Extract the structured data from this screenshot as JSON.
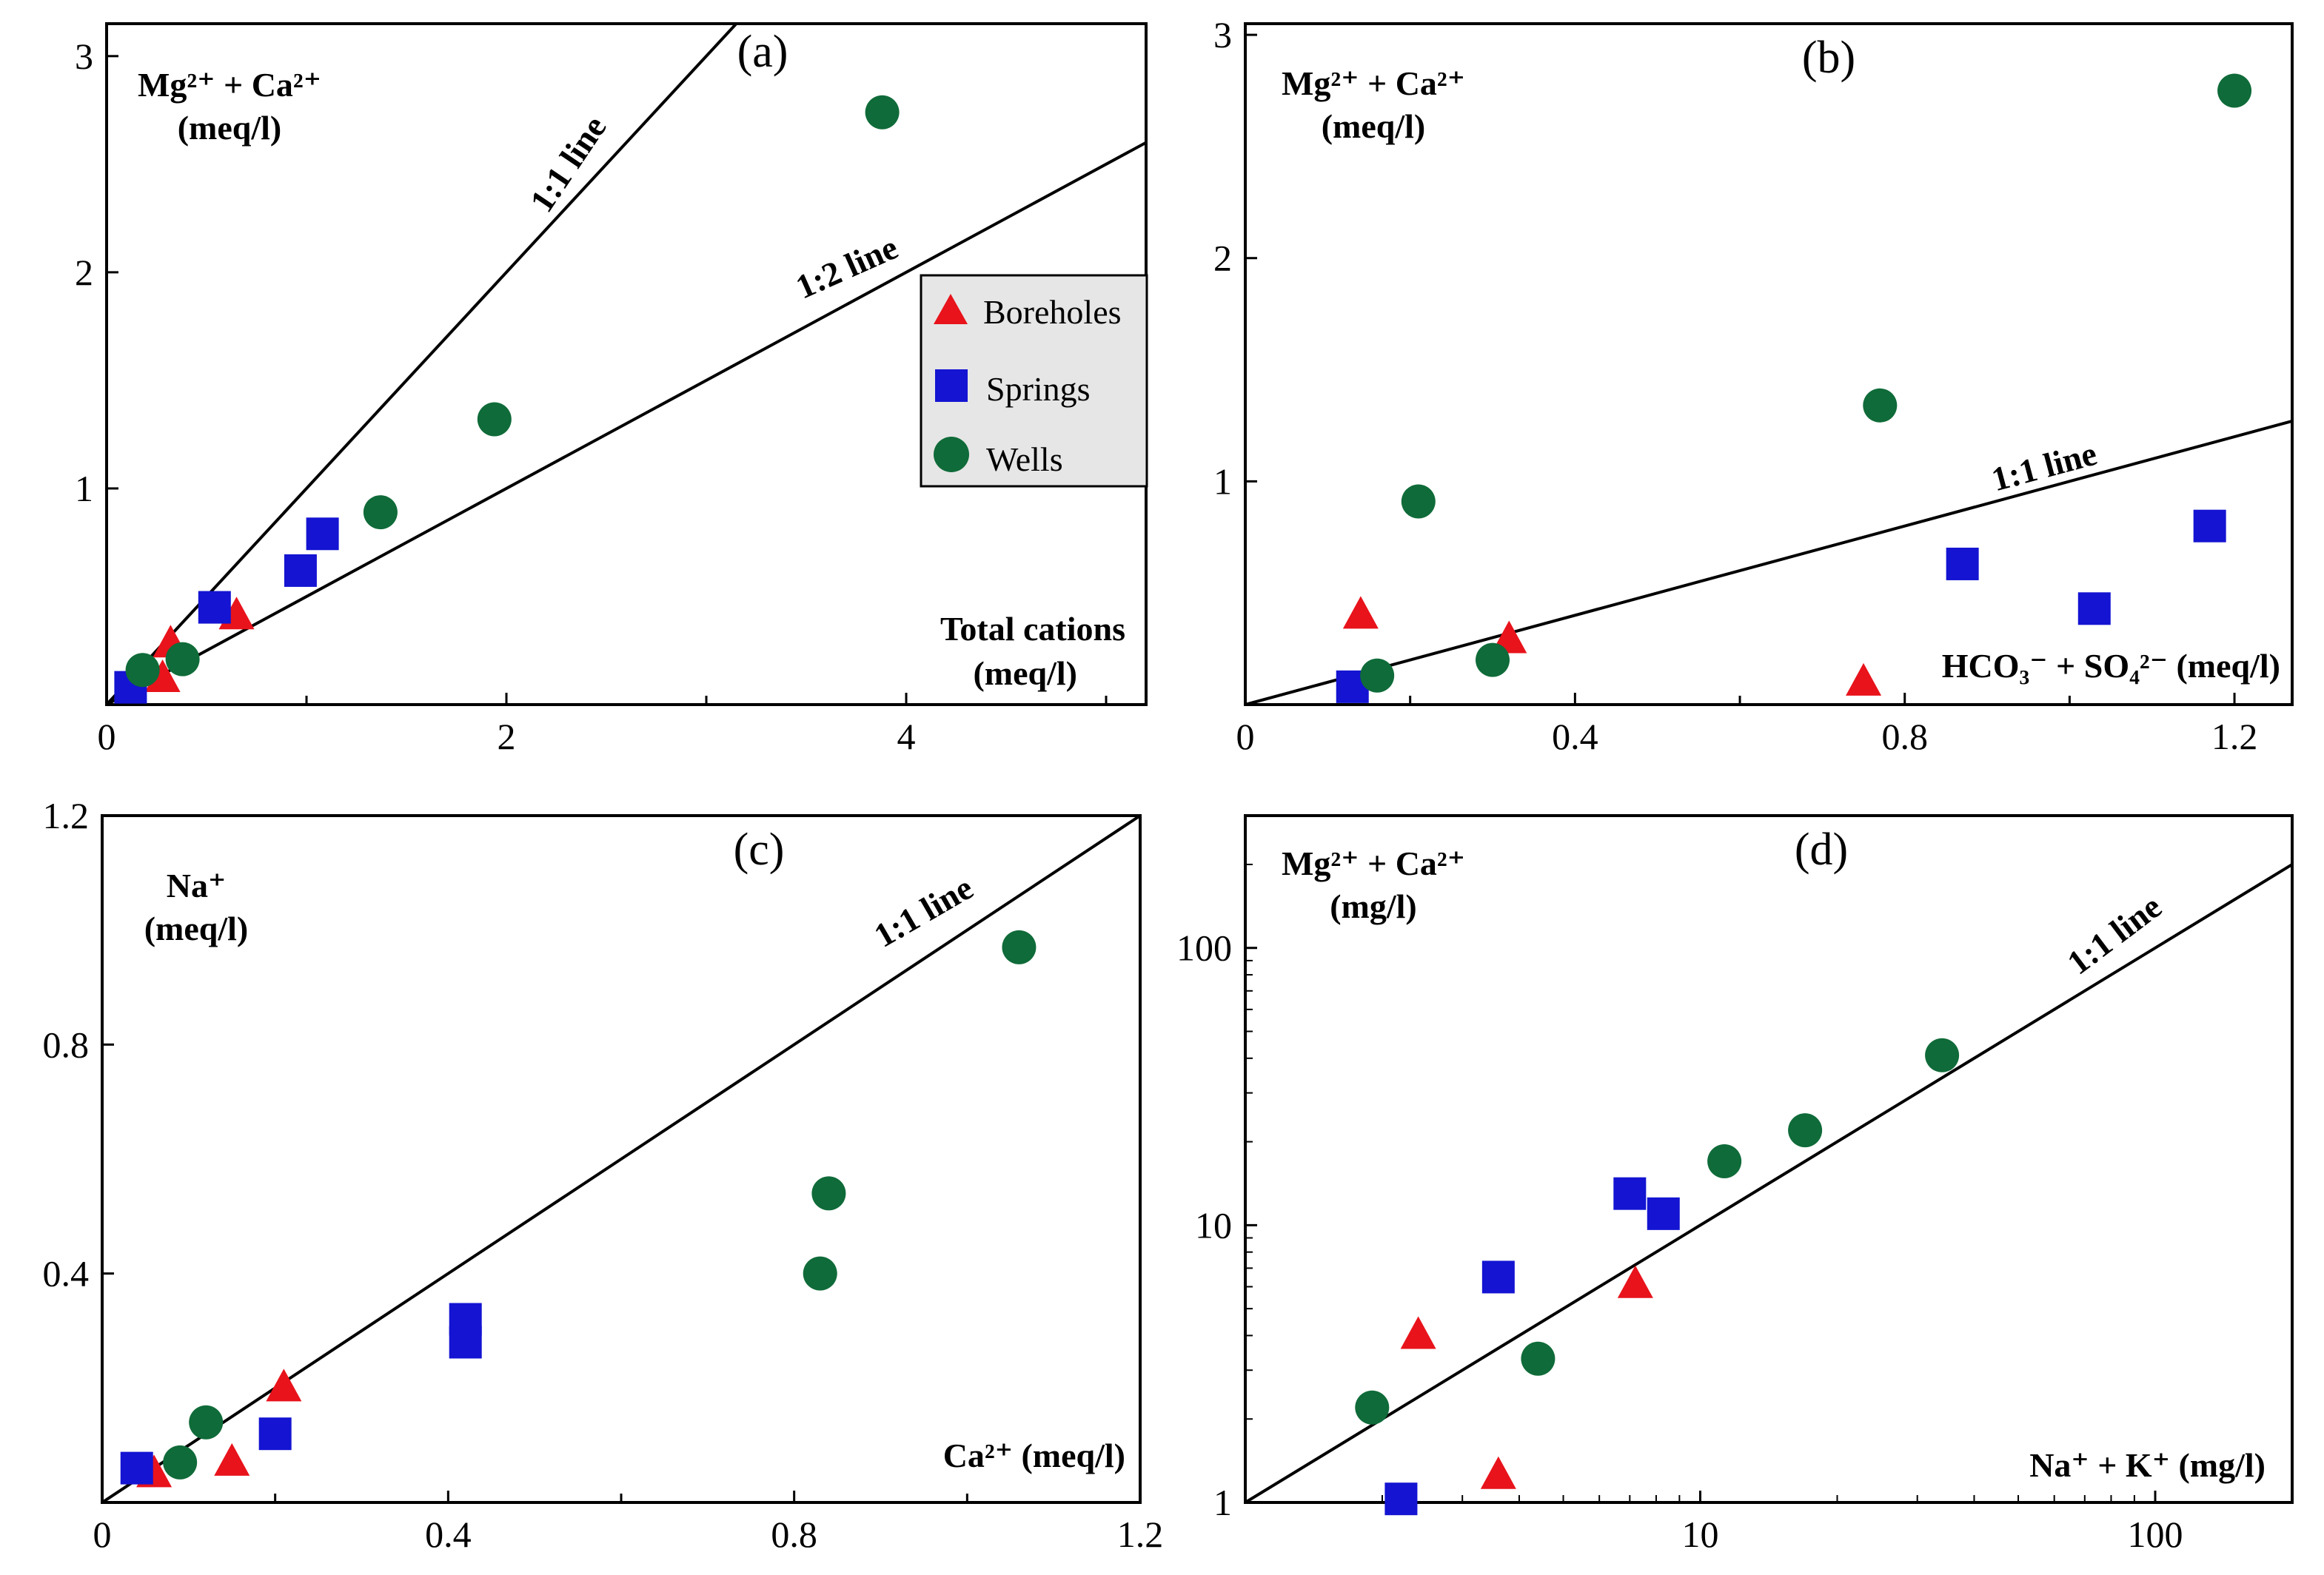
{
  "figure": "Four-panel ionic ratio scatter plots",
  "legend": {
    "items": [
      {
        "label": "Boreholes",
        "marker": "triangle",
        "color": "#e8131b"
      },
      {
        "label": "Springs",
        "marker": "square",
        "color": "#1414d2"
      },
      {
        "label": "Wells",
        "marker": "circle",
        "color": "#0f6b39"
      }
    ]
  },
  "chart_data": [
    {
      "type": "scatter",
      "panel": "(a)",
      "ylabel_line1": "Mg²⁺ + Ca²⁺",
      "ylabel_line2": "(meq/l)",
      "xlabel_line1": "Total cations",
      "xlabel_line2": "(meq/l)",
      "xscale": "linear",
      "yscale": "linear",
      "xlim": [
        0,
        5.2
      ],
      "ylim": [
        0,
        3.15
      ],
      "xticks": [
        0,
        2,
        4
      ],
      "xtick_labels": [
        "0",
        "2",
        "4"
      ],
      "yticks": [
        1,
        2,
        3
      ],
      "ytick_labels": [
        "1",
        "2",
        "3"
      ],
      "minor_xticks": [
        1,
        3,
        5
      ],
      "ref_lines": [
        {
          "label": "1:1 line",
          "slope": 1
        },
        {
          "label": "1:2 line",
          "slope": 0.5
        }
      ],
      "series": [
        {
          "name": "Boreholes",
          "points": [
            [
              0.32,
              0.28
            ],
            [
              0.28,
              0.12
            ],
            [
              0.65,
              0.41
            ]
          ]
        },
        {
          "name": "Springs",
          "points": [
            [
              0.12,
              0.08
            ],
            [
              0.54,
              0.45
            ],
            [
              0.97,
              0.62
            ],
            [
              1.08,
              0.79
            ]
          ]
        },
        {
          "name": "Wells",
          "points": [
            [
              0.18,
              0.16
            ],
            [
              0.38,
              0.21
            ],
            [
              1.37,
              0.89
            ],
            [
              1.94,
              1.32
            ],
            [
              3.88,
              2.74
            ]
          ]
        }
      ]
    },
    {
      "type": "scatter",
      "panel": "(b)",
      "ylabel_line1": "Mg²⁺ + Ca²⁺",
      "ylabel_line2": "(meq/l)",
      "xlabel_line1": "HCO₃⁻ + SO₄²⁻ (meq/l)",
      "xscale": "linear",
      "yscale": "linear",
      "xlim": [
        0,
        1.27
      ],
      "ylim": [
        0,
        3.05
      ],
      "xticks": [
        0,
        0.4,
        0.8,
        1.2
      ],
      "xtick_labels": [
        "0",
        "0.4",
        "0.8",
        "1.2"
      ],
      "yticks": [
        1,
        2,
        3
      ],
      "ytick_labels": [
        "1",
        "2",
        "3"
      ],
      "minor_xticks": [
        0.2,
        0.6,
        1.0
      ],
      "ref_lines": [
        {
          "label": "1:1 line",
          "slope": 1
        }
      ],
      "series": [
        {
          "name": "Boreholes",
          "points": [
            [
              0.14,
              0.4
            ],
            [
              0.32,
              0.29
            ],
            [
              0.75,
              0.1
            ]
          ]
        },
        {
          "name": "Springs",
          "points": [
            [
              0.13,
              0.08
            ],
            [
              0.87,
              0.63
            ],
            [
              1.03,
              0.43
            ],
            [
              1.17,
              0.8
            ]
          ]
        },
        {
          "name": "Wells",
          "points": [
            [
              0.16,
              0.13
            ],
            [
              0.21,
              0.91
            ],
            [
              0.3,
              0.2
            ],
            [
              0.77,
              1.34
            ],
            [
              1.2,
              2.75
            ]
          ]
        }
      ]
    },
    {
      "type": "scatter",
      "panel": "(c)",
      "ylabel_line1": "Na⁺",
      "ylabel_line2": "(meq/l)",
      "xlabel_line1": "Ca²⁺ (meq/l)",
      "xscale": "linear",
      "yscale": "linear",
      "xlim": [
        0,
        1.2
      ],
      "ylim": [
        0,
        1.2
      ],
      "xticks": [
        0,
        0.4,
        0.8,
        1.2
      ],
      "xtick_labels": [
        "0",
        "0.4",
        "0.8",
        "1.2"
      ],
      "yticks": [
        0.4,
        0.8,
        1.2
      ],
      "ytick_labels": [
        "0.4",
        "0.8",
        "1.2"
      ],
      "minor_xticks": [
        0.2,
        0.6,
        1.0
      ],
      "ref_lines": [
        {
          "label": "1:1 line",
          "slope": 1
        }
      ],
      "series": [
        {
          "name": "Boreholes",
          "points": [
            [
              0.06,
              0.05
            ],
            [
              0.15,
              0.07
            ],
            [
              0.21,
              0.2
            ]
          ]
        },
        {
          "name": "Springs",
          "points": [
            [
              0.04,
              0.06
            ],
            [
              0.2,
              0.12
            ],
            [
              0.42,
              0.32
            ],
            [
              0.42,
              0.28
            ]
          ]
        },
        {
          "name": "Wells",
          "points": [
            [
              0.09,
              0.07
            ],
            [
              0.12,
              0.14
            ],
            [
              0.83,
              0.4
            ],
            [
              0.84,
              0.54
            ],
            [
              1.06,
              0.97
            ]
          ]
        }
      ]
    },
    {
      "type": "scatter",
      "panel": "(d)",
      "ylabel_line1": "Mg²⁺ + Ca²⁺",
      "ylabel_line2": "(mg/l)",
      "xlabel_line1": "Na⁺ + K⁺ (mg/l)",
      "xscale": "log",
      "yscale": "log",
      "xlim": [
        1,
        200
      ],
      "ylim": [
        1,
        300
      ],
      "xticks": [
        10,
        100
      ],
      "xtick_labels": [
        "10",
        "100"
      ],
      "yticks": [
        1,
        10,
        100
      ],
      "ytick_labels": [
        "1",
        "10",
        "100"
      ],
      "ref_lines": [
        {
          "label": "1:1 line",
          "slope": 1
        }
      ],
      "series": [
        {
          "name": "Boreholes",
          "points": [
            [
              2.4,
              4.0
            ],
            [
              3.6,
              1.25
            ],
            [
              7.2,
              6.1
            ]
          ]
        },
        {
          "name": "Springs",
          "points": [
            [
              2.2,
              1.03
            ],
            [
              3.6,
              6.5
            ],
            [
              7.0,
              13.0
            ],
            [
              8.3,
              11.0
            ]
          ]
        },
        {
          "name": "Wells",
          "points": [
            [
              1.9,
              2.2
            ],
            [
              4.4,
              3.3
            ],
            [
              11.3,
              17.0
            ],
            [
              17.0,
              22.0
            ],
            [
              34.0,
              41.0
            ]
          ]
        }
      ]
    }
  ]
}
